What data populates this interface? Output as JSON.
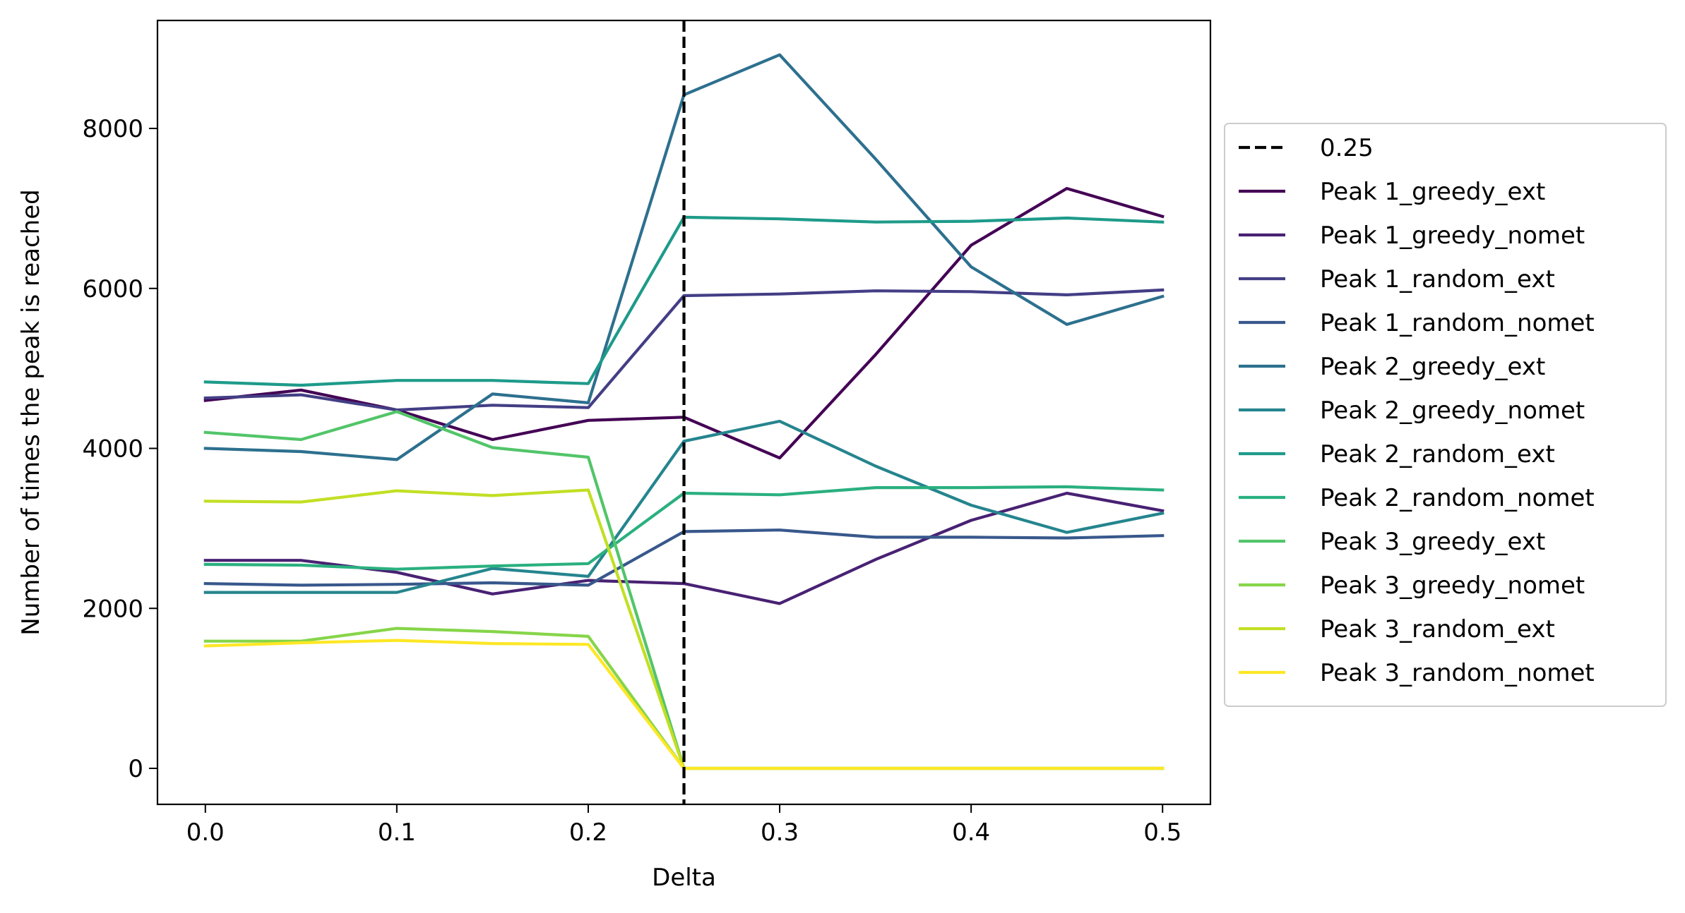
{
  "chart_data": {
    "type": "line",
    "title": "",
    "xlabel": "Delta",
    "ylabel": "Number of times the peak is reached",
    "xlim": [
      -0.025,
      0.525
    ],
    "ylim": [
      -450,
      9350
    ],
    "xticks": [
      0.0,
      0.1,
      0.2,
      0.3,
      0.4,
      0.5
    ],
    "xtick_labels": [
      "0.0",
      "0.1",
      "0.2",
      "0.3",
      "0.4",
      "0.5"
    ],
    "yticks": [
      0,
      2000,
      4000,
      6000,
      8000
    ],
    "ytick_labels": [
      "0",
      "2000",
      "4000",
      "6000",
      "8000"
    ],
    "grid": false,
    "legend_position": "outside-right",
    "vline": {
      "x": 0.25,
      "label": "0.25",
      "color": "#000000",
      "style": "dashed"
    },
    "x": [
      0.0,
      0.05,
      0.1,
      0.15,
      0.2,
      0.25,
      0.3,
      0.35,
      0.4,
      0.45,
      0.5
    ],
    "series": [
      {
        "name": "Peak 1_greedy_ext",
        "color": "#440154",
        "values": [
          4600,
          4730,
          4480,
          4110,
          4350,
          4390,
          3880,
          5170,
          6540,
          7250,
          6900
        ]
      },
      {
        "name": "Peak 1_greedy_nomet",
        "color": "#482173",
        "values": [
          2600,
          2600,
          2450,
          2180,
          2350,
          2310,
          2060,
          2610,
          3100,
          3440,
          3220
        ]
      },
      {
        "name": "Peak 1_random_ext",
        "color": "#433e85",
        "values": [
          4630,
          4670,
          4480,
          4540,
          4510,
          5910,
          5930,
          5970,
          5960,
          5920,
          5980
        ]
      },
      {
        "name": "Peak 1_random_nomet",
        "color": "#38588c",
        "values": [
          2310,
          2290,
          2300,
          2320,
          2290,
          2960,
          2980,
          2890,
          2890,
          2880,
          2910
        ]
      },
      {
        "name": "Peak 2_greedy_ext",
        "color": "#2d708e",
        "values": [
          4000,
          3960,
          3860,
          4680,
          4570,
          8420,
          8920,
          7620,
          6270,
          5550,
          5900
        ]
      },
      {
        "name": "Peak 2_greedy_nomet",
        "color": "#25858e",
        "values": [
          2200,
          2200,
          2200,
          2500,
          2400,
          4090,
          4340,
          3780,
          3290,
          2950,
          3190
        ]
      },
      {
        "name": "Peak 2_random_ext",
        "color": "#1e9b8a",
        "values": [
          4830,
          4790,
          4850,
          4850,
          4810,
          6890,
          6870,
          6830,
          6840,
          6880,
          6830
        ]
      },
      {
        "name": "Peak 2_random_nomet",
        "color": "#2ab07f",
        "values": [
          2550,
          2540,
          2490,
          2530,
          2560,
          3440,
          3420,
          3510,
          3510,
          3520,
          3480
        ]
      },
      {
        "name": "Peak 3_greedy_ext",
        "color": "#52c569",
        "values": [
          4200,
          4110,
          4460,
          4010,
          3890,
          0,
          0,
          0,
          0,
          0,
          0
        ]
      },
      {
        "name": "Peak 3_greedy_nomet",
        "color": "#86d549",
        "values": [
          1590,
          1590,
          1750,
          1710,
          1650,
          0,
          0,
          0,
          0,
          0,
          0
        ]
      },
      {
        "name": "Peak 3_random_ext",
        "color": "#c2df23",
        "values": [
          3340,
          3330,
          3470,
          3410,
          3480,
          0,
          0,
          0,
          0,
          0,
          0
        ]
      },
      {
        "name": "Peak 3_random_nomet",
        "color": "#fde725",
        "values": [
          1530,
          1570,
          1600,
          1560,
          1550,
          0,
          0,
          0,
          0,
          0,
          0
        ]
      }
    ]
  }
}
